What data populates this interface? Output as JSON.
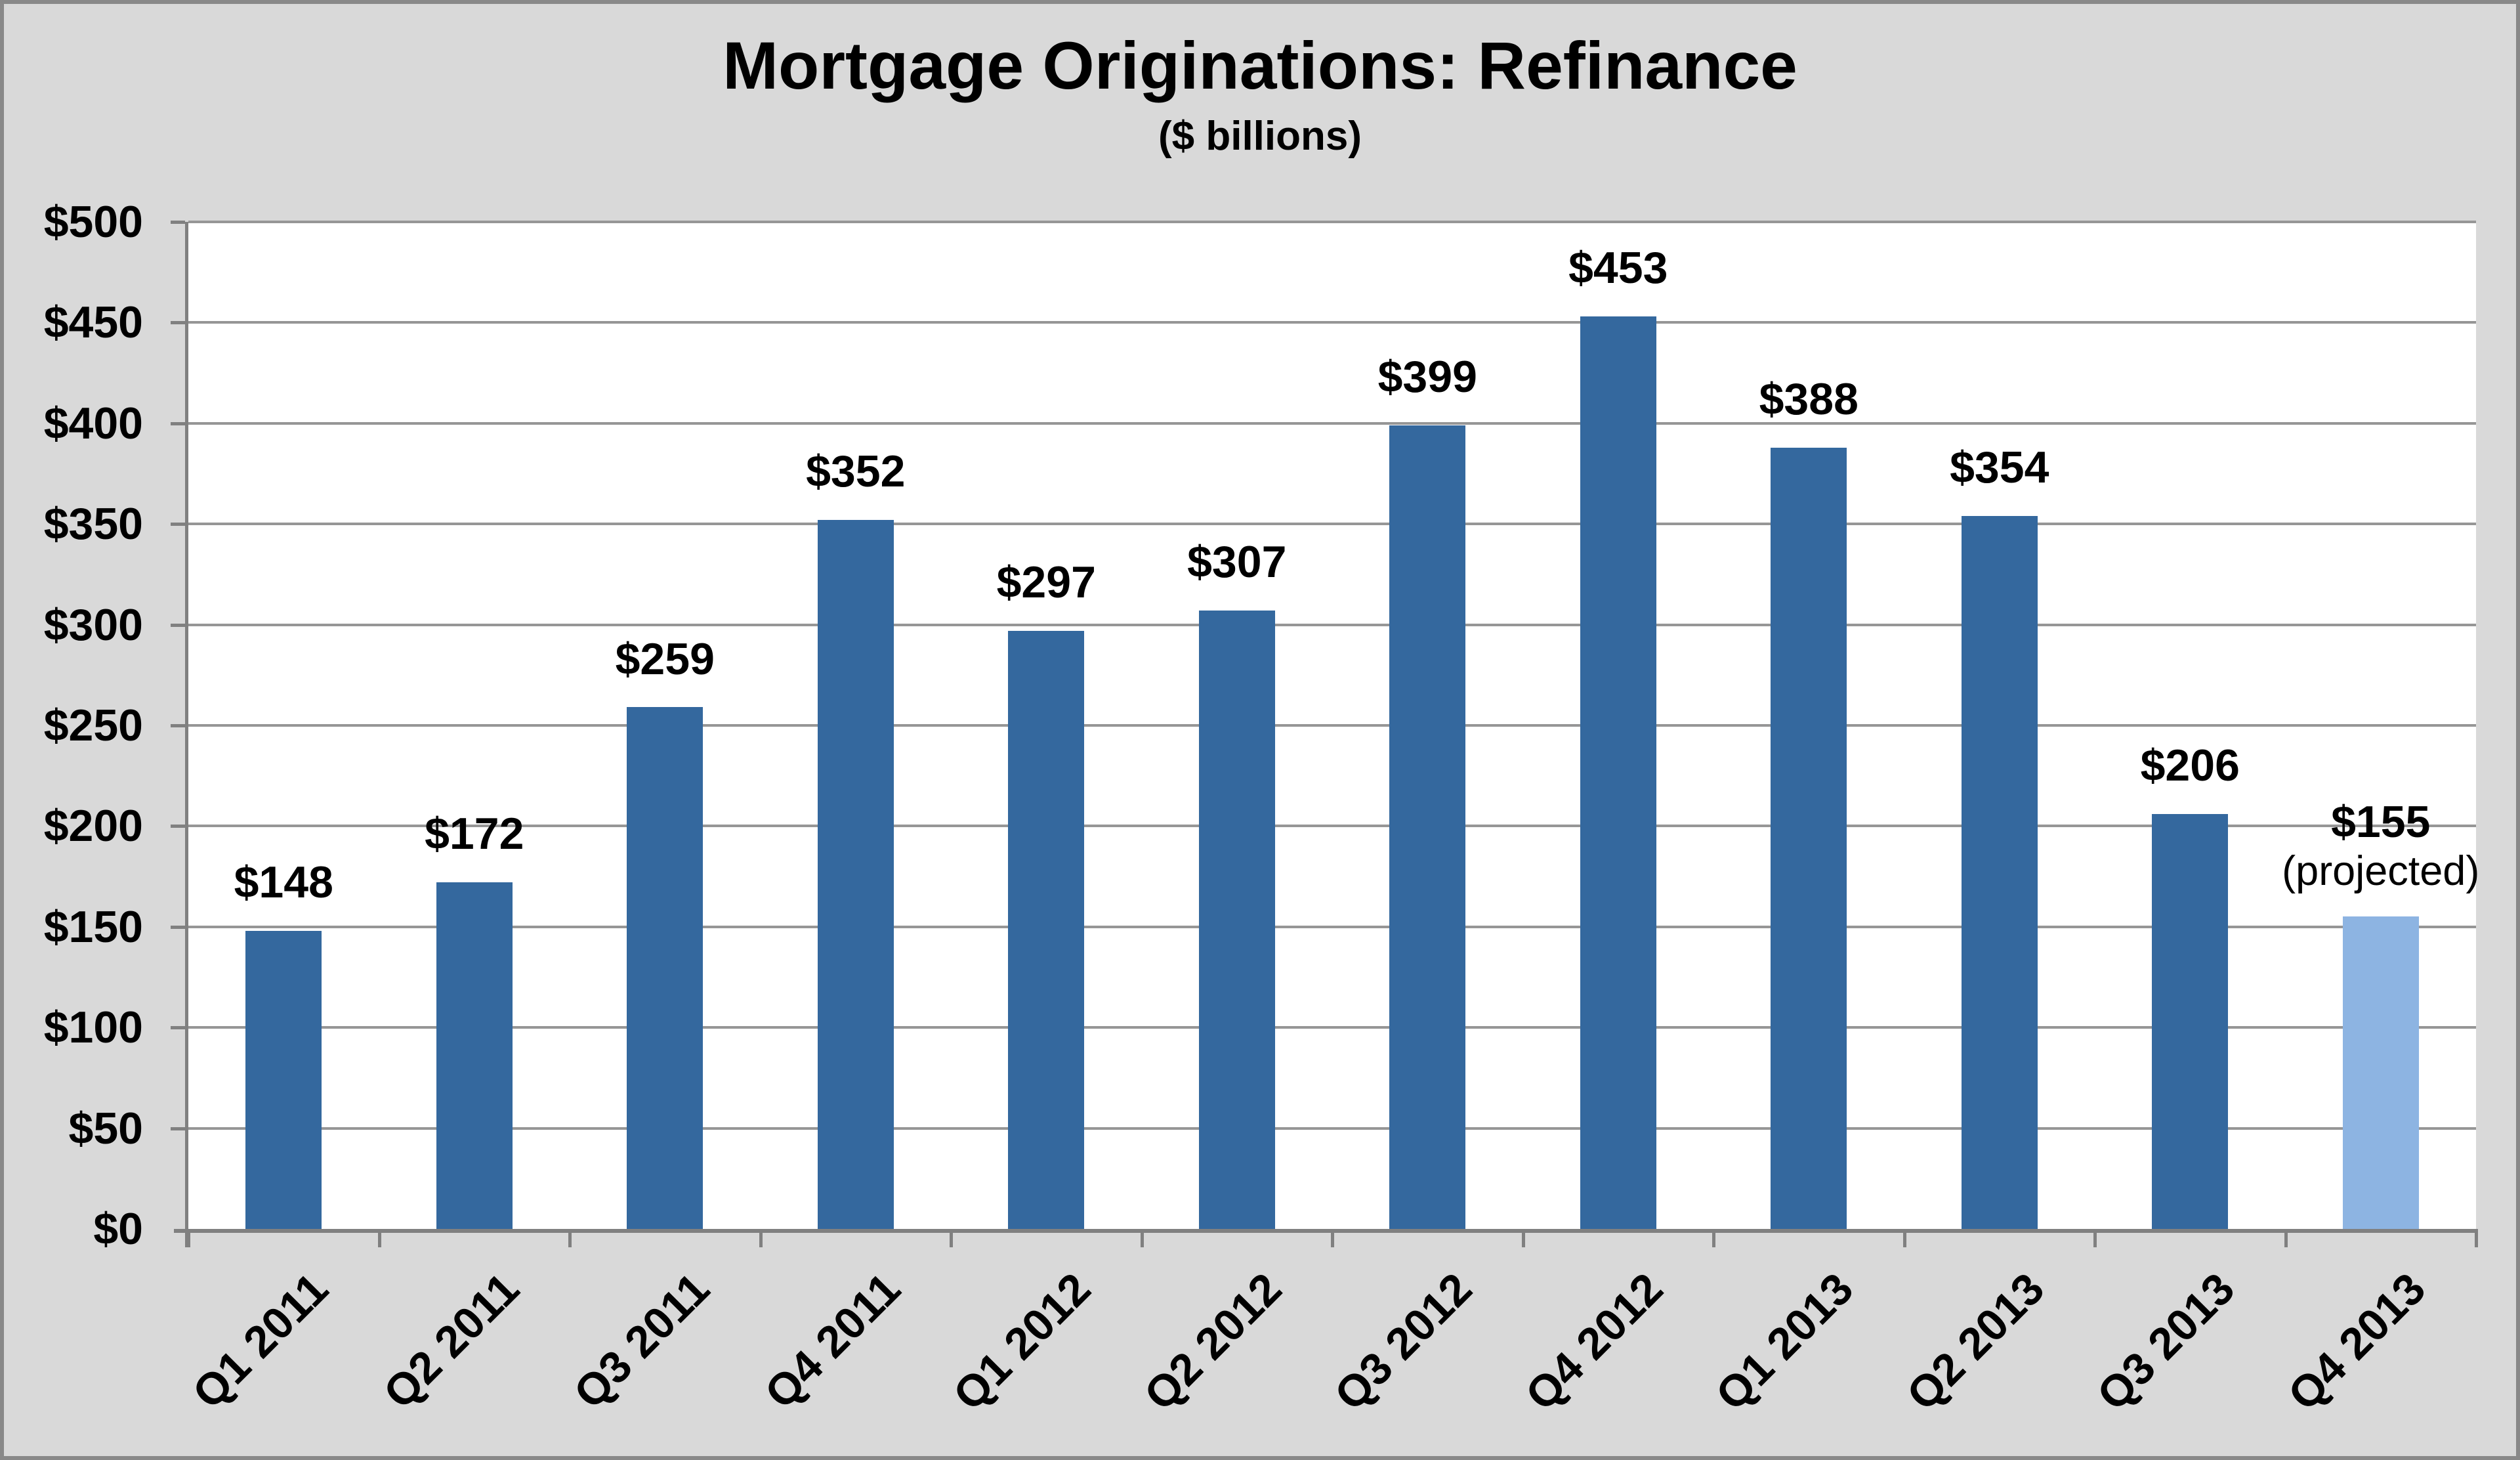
{
  "chart_data": {
    "type": "bar",
    "title": "Mortgage Originations: Refinance",
    "subtitle": "($ billions)",
    "categories": [
      "Q1 2011",
      "Q2 2011",
      "Q3 2011",
      "Q4 2011",
      "Q1 2012",
      "Q2 2012",
      "Q3 2012",
      "Q4 2012",
      "Q1 2013",
      "Q2 2013",
      "Q3 2013",
      "Q4 2013"
    ],
    "values": [
      148,
      172,
      259,
      352,
      297,
      307,
      399,
      453,
      388,
      354,
      206,
      155
    ],
    "bar_labels": [
      "$148",
      "$172",
      "$259",
      "$352",
      "$297",
      "$307",
      "$399",
      "$453",
      "$388",
      "$354",
      "$206",
      "$155"
    ],
    "projected_index": 11,
    "projected_note": "(projected)",
    "y_tick_labels": [
      "$0",
      "$50",
      "$100",
      "$150",
      "$200",
      "$250",
      "$300",
      "$350",
      "$400",
      "$450",
      "$500"
    ],
    "ylim": [
      0,
      500
    ],
    "y_step": 50,
    "grid": true,
    "legend": "none",
    "colors": {
      "bar": "#34689E",
      "bar_projected": "#8DB4E2",
      "background": "#D9D9D9",
      "plot_background": "#FFFFFF",
      "gridline": "#969696",
      "axis": "#808080",
      "text": "#000000",
      "frame_border": "#898989"
    }
  }
}
